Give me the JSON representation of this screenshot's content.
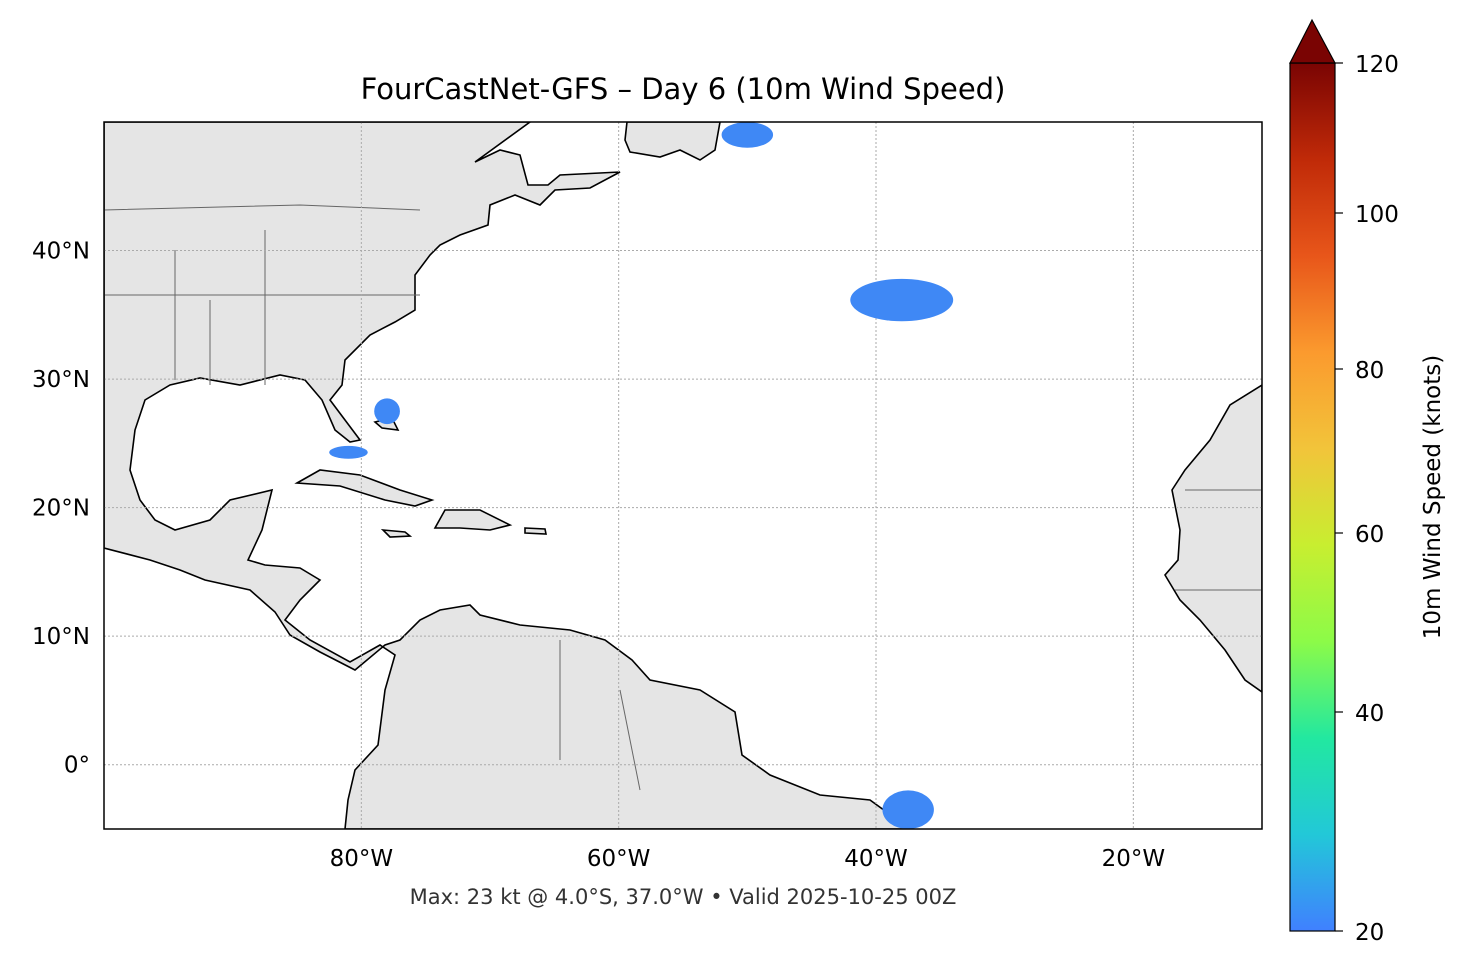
{
  "chart_data": {
    "type": "heatmap",
    "title": "FourCastNet-GFS – Day 6 (10m Wind Speed)",
    "caption": "Max: 23 kt @ 4.0°S, 37.0°W • Valid 2025-10-25 00Z",
    "projection": "PlateCarree",
    "lon_range": [
      -100,
      -10
    ],
    "lat_range": [
      -5,
      50
    ],
    "x_ticks": [
      "80°W",
      "60°W",
      "40°W",
      "20°W"
    ],
    "x_tick_values": [
      -80,
      -60,
      -40,
      -20
    ],
    "y_ticks": [
      "0°",
      "10°N",
      "20°N",
      "30°N",
      "40°N"
    ],
    "y_tick_values": [
      0,
      10,
      20,
      30,
      40
    ],
    "grid": true,
    "colorbar": {
      "label": "10m Wind Speed (knots)",
      "ticks": [
        "20",
        "40",
        "60",
        "80",
        "100",
        "120"
      ],
      "tick_values": [
        20,
        40,
        60,
        80,
        100,
        120
      ],
      "extend": "max",
      "colormap": [
        "#4080ff",
        "#22c8d8",
        "#22e8a0",
        "#8cfb48",
        "#c8ee30",
        "#f2c43a",
        "#fb9a2e",
        "#e8561a",
        "#c02a08",
        "#7a0403"
      ]
    },
    "wind_areas": [
      {
        "lon": [
          -52,
          -48
        ],
        "lat": [
          48,
          50
        ],
        "speed_kt": 21
      },
      {
        "lon": [
          -42,
          -34
        ],
        "lat": [
          34.5,
          37.8
        ],
        "speed_kt": 21
      },
      {
        "lon": [
          -79,
          -77
        ],
        "lat": [
          26.5,
          28.5
        ],
        "speed_kt": 21
      },
      {
        "lon": [
          -82.5,
          -79.5
        ],
        "lat": [
          23.8,
          24.8
        ],
        "speed_kt": 21
      },
      {
        "lon": [
          -39.5,
          -35.5
        ],
        "lat": [
          -5,
          -2
        ],
        "speed_kt": 23
      }
    ],
    "fill_color": "#3f88f5"
  }
}
